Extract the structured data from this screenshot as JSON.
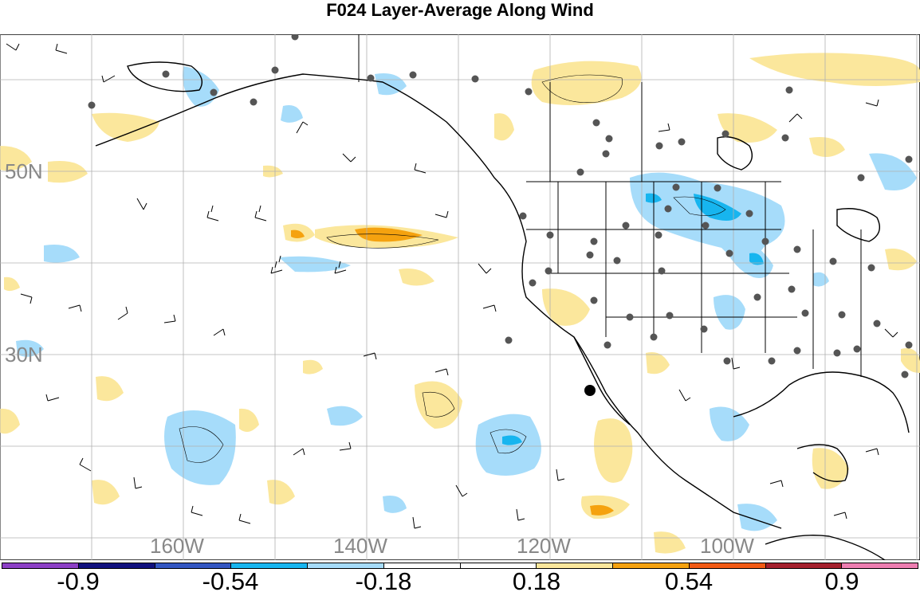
{
  "title": "F024 Layer-Average Along Wind",
  "map": {
    "lat_labels": [
      {
        "text": "50N",
        "lat": 50
      },
      {
        "text": "30N",
        "lat": 30
      }
    ],
    "lon_labels": [
      {
        "text": "160W",
        "lon": -160
      },
      {
        "text": "140W",
        "lon": -140
      },
      {
        "text": "120W",
        "lon": -120
      },
      {
        "text": "100W",
        "lon": -100
      }
    ],
    "colors": {
      "light_blue": "#a6dcfa",
      "cyan": "#17b5ef",
      "light_yellow": "#fbe79c",
      "orange": "#f5a20f",
      "station": "#555555",
      "grid": "#b0b0b0"
    }
  },
  "colorbar": {
    "colors": [
      "#8c3fc6",
      "#10107e",
      "#3356c2",
      "#17b5ef",
      "#a6dcfa",
      "#ffffff",
      "#ffffff",
      "#fbe79c",
      "#f5a20f",
      "#f25a14",
      "#a41f2c",
      "#ee7eb1"
    ],
    "labels": [
      "-0.9",
      "-0.54",
      "-0.18",
      "0.18",
      "0.54",
      "0.9"
    ]
  }
}
